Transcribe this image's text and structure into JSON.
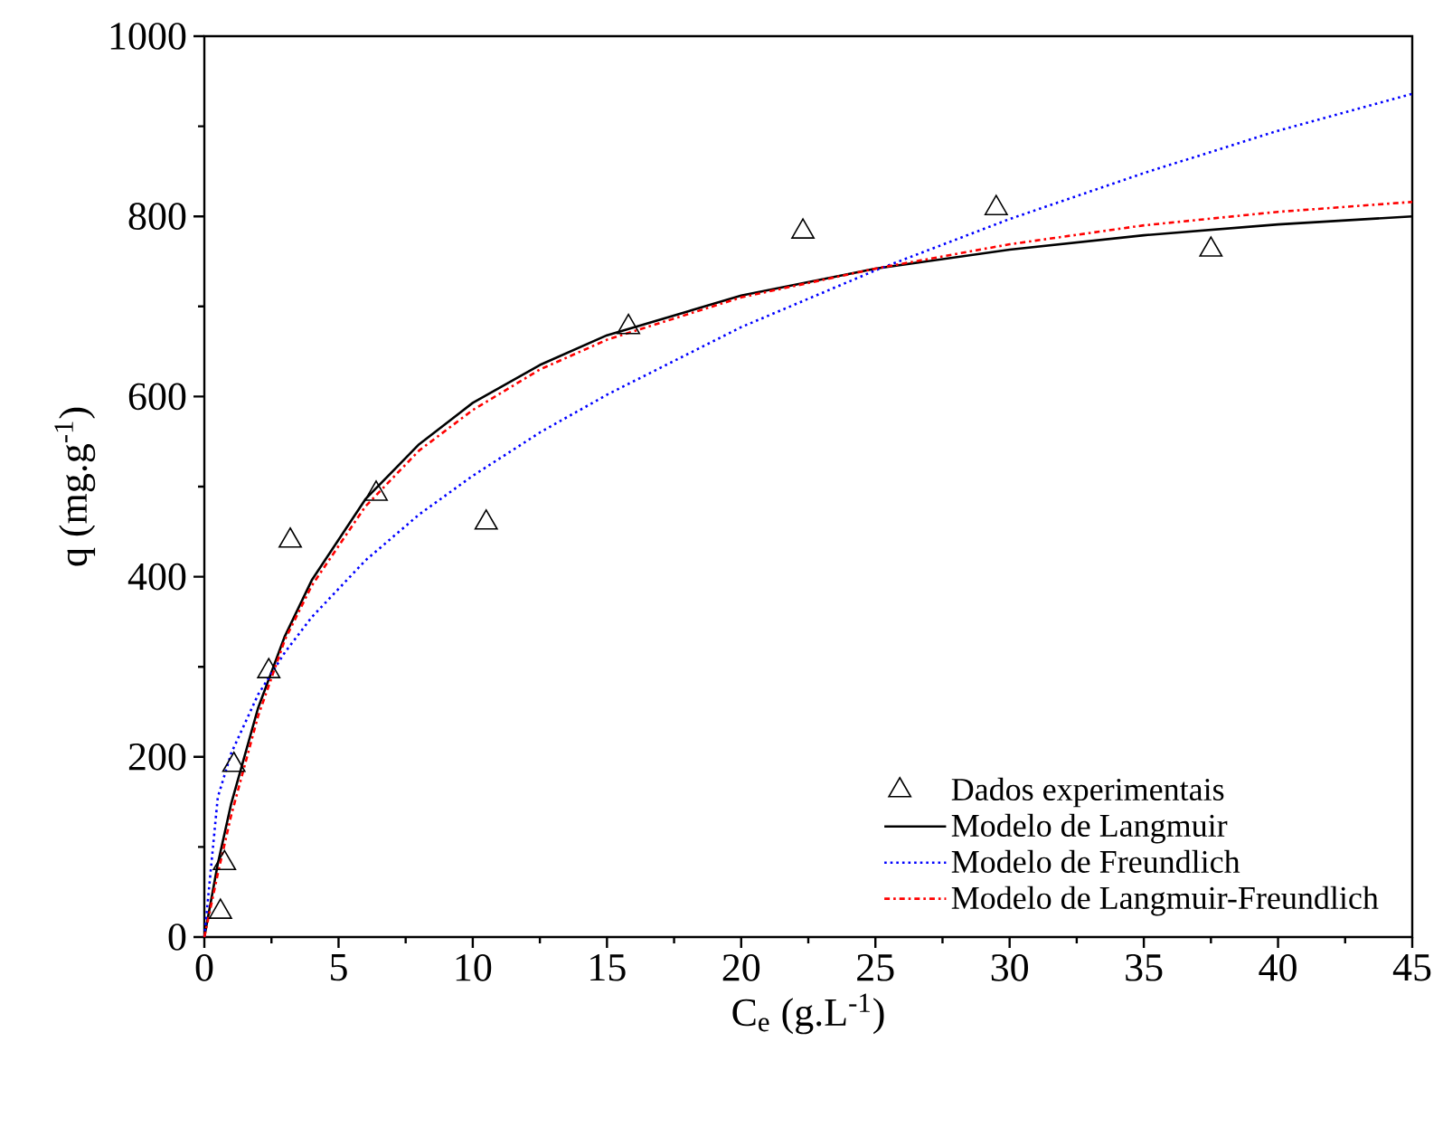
{
  "chart_data": {
    "type": "line",
    "xlabel": "C$_{e}$ (g.L$^{-1}$)",
    "ylabel": "q (mg.g$^{-1}$)",
    "xlim": [
      0,
      45
    ],
    "ylim": [
      0,
      1000
    ],
    "xticks": [
      0,
      5,
      10,
      15,
      20,
      25,
      30,
      35,
      40,
      45
    ],
    "yticks": [
      0,
      200,
      400,
      600,
      800,
      1000
    ],
    "grid": false,
    "legend": "bottom right",
    "series": [
      {
        "name": "Dados experimentais",
        "type": "scatter",
        "marker": "triangle",
        "color": "#000000",
        "x": [
          0.6,
          0.75,
          1.1,
          2.4,
          3.2,
          6.4,
          10.5,
          15.8,
          22.3,
          29.5,
          37.5
        ],
        "values": [
          28,
          82,
          191,
          295,
          440,
          492,
          460,
          677,
          783,
          809,
          763
        ]
      },
      {
        "name": "Modelo de Langmuir",
        "line_style": "solid",
        "color": "#000000",
        "x": [
          0,
          0.5,
          1,
          2,
          3,
          4,
          6,
          8,
          10,
          12.5,
          15,
          20,
          25,
          30,
          35,
          40,
          45
        ],
        "values": [
          0,
          81,
          148,
          254,
          334,
          396,
          486,
          547,
          593,
          635,
          668,
          712,
          742,
          763,
          779,
          791,
          800
        ]
      },
      {
        "name": "Modelo de Freundlich",
        "line_style": "dotted",
        "color": "#0000ff",
        "x": [
          0,
          0.5,
          1,
          2,
          3,
          4,
          6,
          8,
          10,
          12.5,
          15,
          20,
          25,
          30,
          35,
          40,
          45
        ],
        "values": [
          0,
          155,
          204,
          269,
          316,
          355,
          418,
          469,
          512,
          560,
          602,
          677,
          740,
          797,
          848,
          895,
          936
        ]
      },
      {
        "name": "Modelo de Langmuir-Freundlich",
        "line_style": "dashdotted",
        "color": "#ff0000",
        "x": [
          0,
          0.5,
          1,
          2,
          3,
          4,
          6,
          8,
          10,
          12.5,
          15,
          20,
          25,
          30,
          35,
          40,
          45
        ],
        "values": [
          0,
          70,
          135,
          245,
          330,
          390,
          478,
          540,
          585,
          630,
          663,
          710,
          742,
          769,
          790,
          805,
          816
        ]
      }
    ]
  }
}
